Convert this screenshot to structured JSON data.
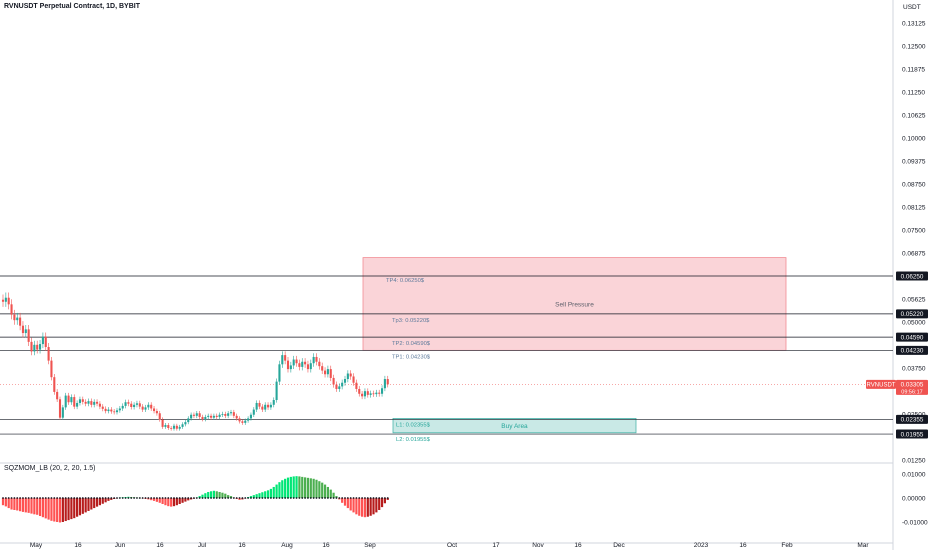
{
  "header": {
    "title": "RVNUSDT Perpetual Contract, 1D, BYBIT",
    "currency": "USDT"
  },
  "indicator": {
    "label": "SQZMOM_LB (20, 2, 20, 1.5)"
  },
  "colors": {
    "up": "#26a69a",
    "down": "#ef5350",
    "sell_zone": "#f8c6cb",
    "buy_zone": "#b2dfdb",
    "level": "#131722",
    "mom_up_strong": "#00e676",
    "mom_up_weak": "#4caf50",
    "mom_down_strong": "#ff5252",
    "mom_down_weak": "#b71c1c"
  },
  "chart_data": {
    "type": "candlestick",
    "y_ticks": [
      "0.13125",
      "0.12500",
      "0.11875",
      "0.11250",
      "0.10625",
      "0.10000",
      "0.09375",
      "0.08750",
      "0.08125",
      "0.07500",
      "0.06875",
      "0.05625",
      "0.05000",
      "0.03750",
      "0.02500",
      "0.01250"
    ],
    "y_range": [
      0.0095,
      0.1355
    ],
    "x_labels": [
      "May",
      "16",
      "Jun",
      "16",
      "Jul",
      "16",
      "Aug",
      "16",
      "Sep",
      "Oct",
      "17",
      "Nov",
      "16",
      "Dec",
      "2023",
      "16",
      "Feb",
      "Mar"
    ],
    "levels": [
      {
        "value": 0.0625,
        "label": "0.06250"
      },
      {
        "value": 0.0522,
        "label": "0.05220"
      },
      {
        "value": 0.0459,
        "label": "0.04590"
      },
      {
        "value": 0.0423,
        "label": "0.04230"
      },
      {
        "value": 0.02355,
        "label": "0.02355"
      },
      {
        "value": 0.01955,
        "label": "0.01955"
      }
    ],
    "current": {
      "symbol": "RVNUSDT",
      "price": "0.03305",
      "countdown": "09:56:17",
      "value": 0.03305
    },
    "zones": [
      {
        "name": "Sell Pressure",
        "top": 0.0675,
        "bottom": 0.0423
      },
      {
        "name": "Buy Area",
        "top": 0.0238,
        "bottom": 0.0199
      }
    ],
    "annotations": [
      {
        "text": "TP4: 0.06250$",
        "value": 0.0625
      },
      {
        "text": "Tp3: 0.05220$",
        "value": 0.0522
      },
      {
        "text": "TP2: 0.04590$",
        "value": 0.0459
      },
      {
        "text": "TP1: 0.04230$",
        "value": 0.0423
      },
      {
        "text": "L1: 0.02355$",
        "value": 0.02355
      },
      {
        "text": "L2: 0.01955$",
        "value": 0.01955
      }
    ],
    "candles_close": [
      0.0555,
      0.0566,
      0.0548,
      0.052,
      0.0505,
      0.0512,
      0.049,
      0.047,
      0.048,
      0.0446,
      0.042,
      0.0438,
      0.0425,
      0.044,
      0.046,
      0.0432,
      0.0395,
      0.035,
      0.031,
      0.029,
      0.024,
      0.0268,
      0.03,
      0.0282,
      0.0296,
      0.027,
      0.028,
      0.029,
      0.0283,
      0.0278,
      0.0285,
      0.0275,
      0.0283,
      0.0278,
      0.027,
      0.0264,
      0.0258,
      0.0262,
      0.0257,
      0.0255,
      0.026,
      0.0265,
      0.0272,
      0.0282,
      0.0278,
      0.0269,
      0.0275,
      0.0279,
      0.027,
      0.0262,
      0.0268,
      0.0275,
      0.0265,
      0.0258,
      0.0252,
      0.0235,
      0.0215,
      0.022,
      0.0212,
      0.021,
      0.0218,
      0.021,
      0.0215,
      0.0222,
      0.0228,
      0.0238,
      0.0248,
      0.0245,
      0.0252,
      0.0242,
      0.0236,
      0.0242,
      0.0245,
      0.024,
      0.0245,
      0.0242,
      0.0248,
      0.025,
      0.0245,
      0.0252,
      0.0255,
      0.0245,
      0.0238,
      0.023,
      0.0226,
      0.0232,
      0.0238,
      0.0248,
      0.0262,
      0.028,
      0.027,
      0.0262,
      0.0275,
      0.0268,
      0.0275,
      0.0288,
      0.0338,
      0.0385,
      0.041,
      0.0395,
      0.0372,
      0.0382,
      0.0398,
      0.0388,
      0.0378,
      0.0392,
      0.0385,
      0.0372,
      0.0388,
      0.0405,
      0.0392,
      0.038,
      0.0368,
      0.0358,
      0.0372,
      0.0348,
      0.033,
      0.0318,
      0.0325,
      0.0335,
      0.0345,
      0.036,
      0.0352,
      0.0335,
      0.0318,
      0.0305,
      0.0298,
      0.0312,
      0.0302,
      0.0306,
      0.0304,
      0.0308,
      0.0305,
      0.032,
      0.0345,
      0.03305
    ],
    "momentum": [
      -0.003,
      -0.0035,
      -0.0042,
      -0.0048,
      -0.005,
      -0.0052,
      -0.0055,
      -0.0058,
      -0.006,
      -0.0062,
      -0.0065,
      -0.0068,
      -0.007,
      -0.0075,
      -0.008,
      -0.0085,
      -0.009,
      -0.0095,
      -0.0098,
      -0.01,
      -0.0102,
      -0.01,
      -0.0096,
      -0.0092,
      -0.0088,
      -0.0084,
      -0.0078,
      -0.0072,
      -0.0066,
      -0.006,
      -0.0054,
      -0.0048,
      -0.0042,
      -0.0036,
      -0.003,
      -0.0024,
      -0.0018,
      -0.0012,
      -0.0008,
      -0.0004,
      -0.0002,
      0.0002,
      0.0003,
      0.0004,
      0.0005,
      0.0004,
      0.0003,
      0.0002,
      0.0001,
      -0.0002,
      -0.0004,
      -0.0006,
      -0.0009,
      -0.0012,
      -0.0016,
      -0.002,
      -0.0025,
      -0.003,
      -0.0034,
      -0.0036,
      -0.0034,
      -0.003,
      -0.0025,
      -0.002,
      -0.0015,
      -0.001,
      -0.0006,
      -0.0003,
      0.0002,
      0.0008,
      0.0014,
      0.002,
      0.0025,
      0.0028,
      0.003,
      0.0028,
      0.0025,
      0.0022,
      0.0018,
      0.0012,
      0.0008,
      0.0002,
      -0.0004,
      -0.0008,
      -0.0006,
      -0.0002,
      0.0004,
      0.0008,
      0.0012,
      0.0016,
      0.002,
      0.0024,
      0.0028,
      0.0032,
      0.0038,
      0.0046,
      0.0056,
      0.0066,
      0.0074,
      0.008,
      0.0085,
      0.0088,
      0.009,
      0.0091,
      0.009,
      0.0088,
      0.0086,
      0.0084,
      0.0082,
      0.008,
      0.0076,
      0.007,
      0.0064,
      0.0056,
      0.0046,
      0.0035,
      0.0022,
      0.0008,
      -0.0006,
      -0.002,
      -0.0032,
      -0.0042,
      -0.0052,
      -0.006,
      -0.0068,
      -0.0074,
      -0.0078,
      -0.008,
      -0.0078,
      -0.0074,
      -0.0068,
      -0.006,
      -0.005,
      -0.0038,
      -0.0022,
      -0.0008
    ],
    "momentum_ticks": [
      "0.01000",
      "0.00000",
      "-0.01000"
    ],
    "momentum_range": [
      -0.0125,
      0.0125
    ]
  }
}
